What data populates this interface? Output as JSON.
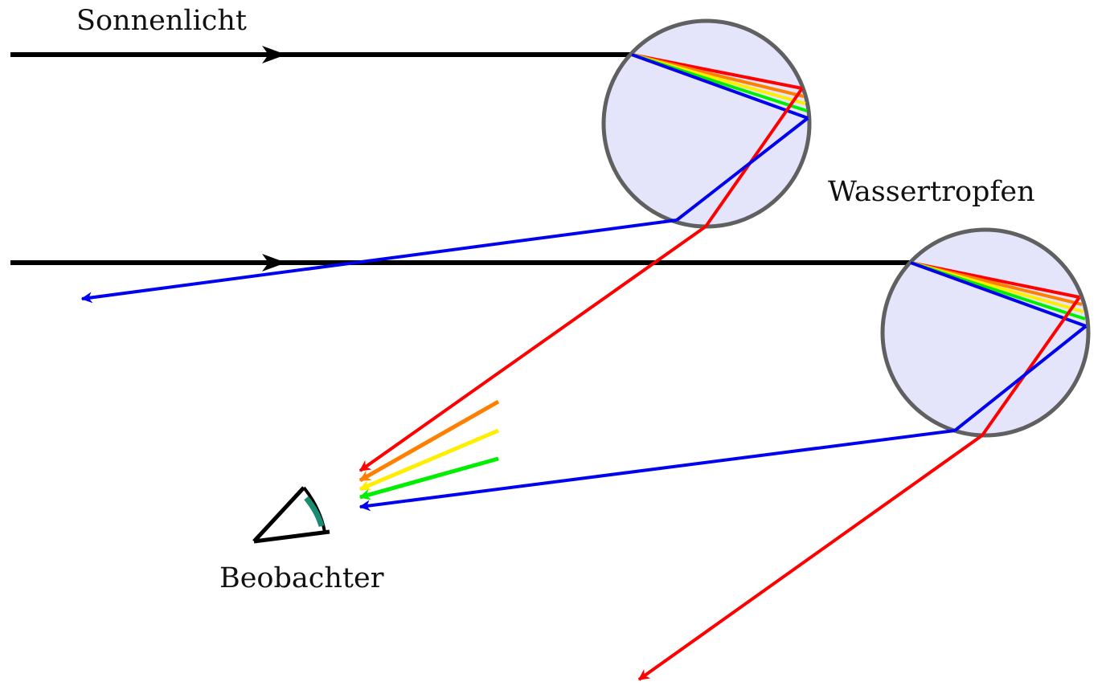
{
  "labels": {
    "sunlight": "Sonnenlicht",
    "droplet": "Wassertropfen",
    "observer": "Beobachter"
  },
  "colors": {
    "sun_ray": "#000000",
    "droplet_fill": "#e4e4fb",
    "droplet_stroke": "#606060",
    "red": "#ff0000",
    "orange": "#ff8000",
    "yellow": "#ffee00",
    "green": "#00ee00",
    "blue": "#0000ee",
    "observer_arc": "#1a8c73"
  },
  "icons": {
    "observer": "eye-cone-icon",
    "ray_arrow": "arrowhead-icon"
  }
}
